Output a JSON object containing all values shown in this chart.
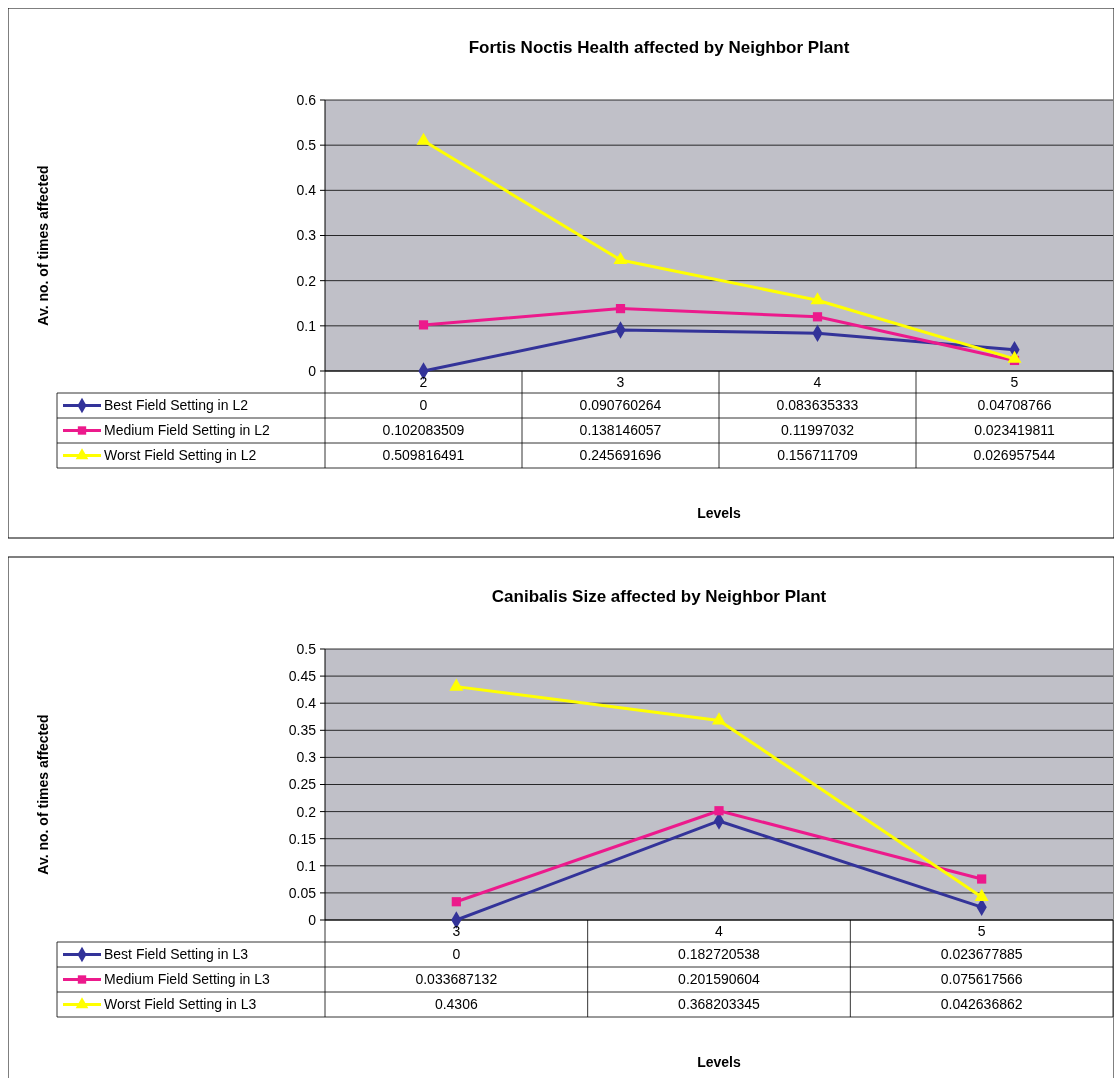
{
  "chart_data": [
    {
      "type": "line",
      "title": "Fortis Noctis Health affected by Neighbor Plant",
      "xlabel": "Levels",
      "ylabel": "Av. no. of times affected",
      "categories": [
        "2",
        "3",
        "4",
        "5"
      ],
      "ylim": [
        0,
        0.6
      ],
      "yticks": [
        0,
        0.1,
        0.2,
        0.3,
        0.4,
        0.5,
        0.6
      ],
      "grid": "y",
      "legend": "bottom",
      "data_labels": true,
      "series": [
        {
          "name": "Best Field Setting in L2",
          "color": "#333399",
          "marker": "diamond",
          "values": [
            0,
            0.090760264,
            0.083635333,
            0.04708766
          ]
        },
        {
          "name": "Medium Field Setting in L2",
          "color": "#ec1a8c",
          "marker": "square",
          "values": [
            0.102083509,
            0.138146057,
            0.11997032,
            0.023419811
          ]
        },
        {
          "name": "Worst Field Setting in L2",
          "color": "#ffff00",
          "marker": "triangle",
          "values": [
            0.509816491,
            0.245691696,
            0.156711709,
            0.026957544
          ]
        }
      ]
    },
    {
      "type": "line",
      "title": "Canibalis Size affected by Neighbor Plant",
      "xlabel": "Levels",
      "ylabel": "Av. no. of times affected",
      "categories": [
        "3",
        "4",
        "5"
      ],
      "ylim": [
        0,
        0.5
      ],
      "yticks": [
        0,
        0.05,
        0.1,
        0.15,
        0.2,
        0.25,
        0.3,
        0.35,
        0.4,
        0.45,
        0.5
      ],
      "grid": "y",
      "legend": "bottom",
      "data_labels": true,
      "series": [
        {
          "name": "Best Field Setting in L3",
          "color": "#333399",
          "marker": "diamond",
          "values": [
            0,
            0.182720538,
            0.023677885
          ]
        },
        {
          "name": "Medium Field Setting in L3",
          "color": "#ec1a8c",
          "marker": "square",
          "values": [
            0.033687132,
            0.201590604,
            0.075617566
          ]
        },
        {
          "name": "Worst Field Setting in L3",
          "color": "#ffff00",
          "marker": "triangle",
          "values": [
            0.4306,
            0.368203345,
            0.042636862
          ]
        }
      ]
    }
  ]
}
